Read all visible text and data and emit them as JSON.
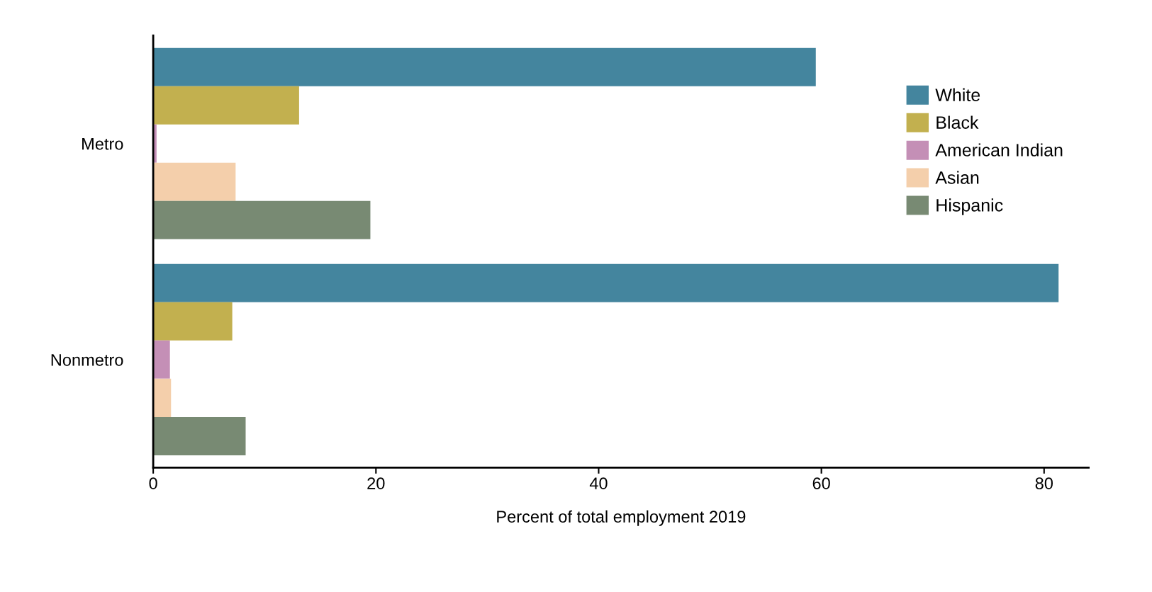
{
  "chart_data": {
    "type": "bar",
    "orientation": "horizontal",
    "xlabel": "Percent of total employment 2019",
    "categories": [
      "Metro",
      "Nonmetro"
    ],
    "series": [
      {
        "name": "White",
        "color": "#44859e",
        "values": [
          59.5,
          81.3
        ]
      },
      {
        "name": "Black",
        "color": "#c2b04f",
        "values": [
          13.1,
          7.1
        ]
      },
      {
        "name": "American Indian",
        "color": "#c48fb6",
        "values": [
          0.3,
          1.5
        ]
      },
      {
        "name": "Asian",
        "color": "#f4cfab",
        "values": [
          7.4,
          1.6
        ]
      },
      {
        "name": "Hispanic",
        "color": "#788a73",
        "values": [
          19.5,
          8.3
        ]
      }
    ],
    "xlim": [
      0,
      84
    ],
    "xticks": [
      0,
      20,
      40,
      60,
      80
    ],
    "legend": "top right",
    "grid": false
  }
}
